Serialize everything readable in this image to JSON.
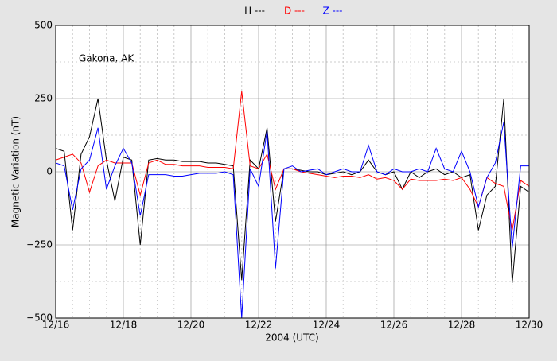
{
  "chart_data": {
    "type": "line",
    "annotation": "Gakona, AK",
    "xlabel": "2004 (UTC)",
    "ylabel": "Magnetic Variation (nT)",
    "categories": [
      "12/16",
      null,
      null,
      null,
      null,
      null,
      null,
      null,
      "12/18",
      null,
      null,
      null,
      null,
      null,
      null,
      null,
      "12/20",
      null,
      null,
      null,
      null,
      null,
      null,
      null,
      "12/22",
      null,
      null,
      null,
      null,
      null,
      null,
      null,
      "12/24",
      null,
      null,
      null,
      null,
      null,
      null,
      null,
      "12/26",
      null,
      null,
      null,
      null,
      null,
      null,
      null,
      "12/28",
      null,
      null,
      null,
      null,
      null,
      null,
      null,
      "12/30"
    ],
    "series": [
      {
        "name": "H ---",
        "color": "#000000",
        "values": [
          80,
          70,
          -200,
          60,
          120,
          250,
          40,
          -100,
          50,
          40,
          -250,
          40,
          45,
          40,
          40,
          35,
          35,
          35,
          30,
          30,
          25,
          20,
          -370,
          40,
          10,
          150,
          -170,
          10,
          10,
          5,
          0,
          0,
          -10,
          -5,
          0,
          -10,
          0,
          40,
          0,
          -10,
          0,
          -60,
          0,
          -20,
          0,
          10,
          -10,
          0,
          -20,
          -10,
          -200,
          -80,
          -50,
          250,
          -380,
          -50,
          -70
        ]
      },
      {
        "name": "D ---",
        "color": "#ff0000",
        "values": [
          40,
          50,
          60,
          30,
          -70,
          20,
          40,
          30,
          30,
          30,
          -80,
          30,
          40,
          25,
          25,
          20,
          20,
          20,
          15,
          15,
          15,
          10,
          275,
          20,
          10,
          60,
          -60,
          10,
          10,
          0,
          -5,
          -10,
          -15,
          -20,
          -15,
          -15,
          -20,
          -10,
          -25,
          -20,
          -30,
          -60,
          -25,
          -30,
          -30,
          -30,
          -25,
          -30,
          -20,
          -60,
          -120,
          -20,
          -40,
          -50,
          -200,
          -30,
          -50
        ]
      },
      {
        "name": "Z ---",
        "color": "#0000ff",
        "values": [
          30,
          20,
          -130,
          10,
          40,
          150,
          -60,
          20,
          80,
          30,
          -150,
          -10,
          -10,
          -10,
          -15,
          -15,
          -10,
          -5,
          -5,
          -5,
          0,
          -10,
          -500,
          10,
          -50,
          140,
          -330,
          10,
          20,
          0,
          5,
          10,
          -10,
          0,
          10,
          0,
          0,
          90,
          0,
          -10,
          10,
          0,
          0,
          10,
          0,
          80,
          10,
          0,
          70,
          0,
          -120,
          -20,
          30,
          170,
          -260,
          20,
          20
        ]
      }
    ],
    "ylim": [
      -500,
      500
    ],
    "yticks": [
      {
        "value": -500,
        "label": "−500"
      },
      {
        "value": -250,
        "label": "−250"
      },
      0,
      250,
      500
    ],
    "grid": true
  }
}
